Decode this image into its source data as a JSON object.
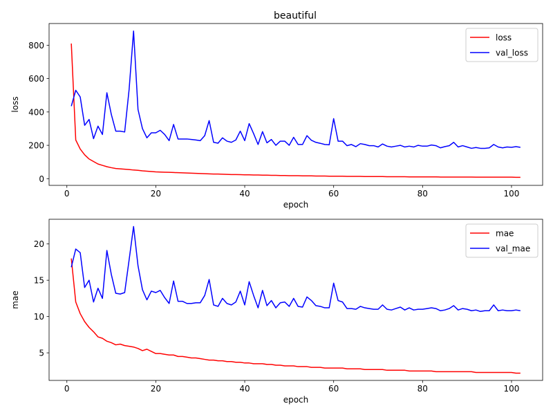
{
  "figure": {
    "title": "beautiful"
  },
  "chart_data": [
    {
      "type": "line",
      "title": "beautiful",
      "xlabel": "epoch",
      "ylabel": "loss",
      "xlim": [
        -4,
        107
      ],
      "ylim": [
        -40,
        930
      ],
      "xticks": [
        "0",
        "20",
        "40",
        "60",
        "80",
        "100"
      ],
      "yticks": [
        "0",
        "200",
        "400",
        "600",
        "800"
      ],
      "legend_position": "top-right",
      "grid": false,
      "x_start": 1,
      "series": [
        {
          "name": "loss",
          "color": "#ff0000",
          "values": [
            810,
            232,
            178,
            143,
            118,
            103,
            88,
            80,
            72,
            66,
            61,
            59,
            57,
            55,
            52,
            50,
            47,
            45,
            43,
            41,
            40,
            39,
            38,
            37,
            36,
            35,
            34,
            33,
            32,
            31,
            30,
            29,
            28,
            28,
            27,
            26,
            25,
            25,
            24,
            23,
            23,
            22,
            22,
            21,
            21,
            20,
            20,
            19,
            19,
            18,
            18,
            18,
            17,
            17,
            17,
            16,
            16,
            16,
            15,
            15,
            15,
            15,
            14,
            14,
            14,
            14,
            13,
            13,
            13,
            13,
            13,
            12,
            12,
            12,
            12,
            12,
            11,
            11,
            11,
            11,
            11,
            11,
            11,
            10,
            10,
            10,
            10,
            10,
            10,
            10,
            10,
            9,
            9,
            9,
            9,
            9,
            9,
            9,
            9,
            9,
            8,
            8
          ]
        },
        {
          "name": "val_loss",
          "color": "#0000ff",
          "values": [
            435,
            530,
            490,
            320,
            355,
            240,
            315,
            265,
            515,
            385,
            285,
            285,
            280,
            535,
            885,
            415,
            300,
            245,
            275,
            275,
            290,
            265,
            228,
            325,
            238,
            238,
            238,
            235,
            232,
            228,
            258,
            348,
            218,
            213,
            245,
            225,
            218,
            232,
            285,
            228,
            330,
            270,
            205,
            282,
            215,
            235,
            200,
            225,
            225,
            200,
            248,
            205,
            205,
            258,
            230,
            218,
            212,
            205,
            203,
            360,
            225,
            225,
            198,
            205,
            192,
            210,
            205,
            198,
            198,
            190,
            208,
            195,
            190,
            195,
            200,
            190,
            195,
            190,
            200,
            195,
            195,
            202,
            198,
            185,
            192,
            198,
            218,
            190,
            198,
            190,
            182,
            187,
            182,
            182,
            185,
            205,
            190,
            185,
            190,
            188,
            192,
            188
          ]
        }
      ]
    },
    {
      "type": "line",
      "title": "",
      "xlabel": "epoch",
      "ylabel": "mae",
      "xlim": [
        -4,
        107
      ],
      "ylim": [
        1.2,
        23.4
      ],
      "xticks": [
        "0",
        "20",
        "40",
        "60",
        "80",
        "100"
      ],
      "yticks": [
        "5",
        "10",
        "15",
        "20"
      ],
      "legend_position": "top-right",
      "grid": false,
      "x_start": 1,
      "series": [
        {
          "name": "mae",
          "color": "#ff0000",
          "values": [
            18.0,
            12.0,
            10.4,
            9.3,
            8.5,
            7.9,
            7.2,
            7.0,
            6.6,
            6.4,
            6.1,
            6.2,
            6.0,
            5.9,
            5.8,
            5.6,
            5.3,
            5.5,
            5.2,
            4.9,
            4.9,
            4.8,
            4.7,
            4.7,
            4.5,
            4.5,
            4.4,
            4.3,
            4.3,
            4.2,
            4.1,
            4.0,
            4.0,
            3.9,
            3.9,
            3.8,
            3.8,
            3.7,
            3.7,
            3.6,
            3.6,
            3.5,
            3.5,
            3.5,
            3.4,
            3.4,
            3.3,
            3.3,
            3.2,
            3.2,
            3.2,
            3.1,
            3.1,
            3.1,
            3.0,
            3.0,
            3.0,
            2.9,
            2.9,
            2.9,
            2.9,
            2.9,
            2.8,
            2.8,
            2.8,
            2.8,
            2.7,
            2.7,
            2.7,
            2.7,
            2.7,
            2.6,
            2.6,
            2.6,
            2.6,
            2.6,
            2.5,
            2.5,
            2.5,
            2.5,
            2.5,
            2.5,
            2.4,
            2.4,
            2.4,
            2.4,
            2.4,
            2.4,
            2.4,
            2.4,
            2.4,
            2.3,
            2.3,
            2.3,
            2.3,
            2.3,
            2.3,
            2.3,
            2.3,
            2.3,
            2.2,
            2.2
          ]
        },
        {
          "name": "val_mae",
          "color": "#0000ff",
          "values": [
            16.8,
            19.3,
            18.8,
            14.0,
            15.0,
            12.0,
            13.9,
            12.5,
            19.1,
            15.8,
            13.2,
            13.1,
            13.3,
            17.8,
            22.4,
            17.0,
            13.7,
            12.3,
            13.5,
            13.3,
            13.6,
            12.6,
            11.8,
            14.9,
            12.1,
            12.1,
            11.8,
            11.8,
            11.9,
            11.9,
            12.9,
            15.1,
            11.6,
            11.4,
            12.5,
            11.8,
            11.6,
            12.0,
            13.5,
            11.6,
            14.8,
            12.9,
            11.2,
            13.6,
            11.5,
            12.2,
            11.2,
            11.9,
            12.0,
            11.4,
            12.5,
            11.4,
            11.3,
            12.7,
            12.2,
            11.5,
            11.4,
            11.2,
            11.2,
            14.6,
            12.2,
            12.0,
            11.1,
            11.1,
            11.0,
            11.4,
            11.2,
            11.1,
            11.0,
            11.0,
            11.6,
            11.0,
            10.9,
            11.1,
            11.3,
            10.9,
            11.2,
            10.9,
            11.0,
            11.0,
            11.1,
            11.2,
            11.1,
            10.8,
            10.9,
            11.1,
            11.5,
            10.9,
            11.1,
            11.0,
            10.8,
            10.9,
            10.7,
            10.8,
            10.8,
            11.6,
            10.8,
            10.9,
            10.8,
            10.8,
            10.9,
            10.8
          ]
        }
      ]
    }
  ]
}
